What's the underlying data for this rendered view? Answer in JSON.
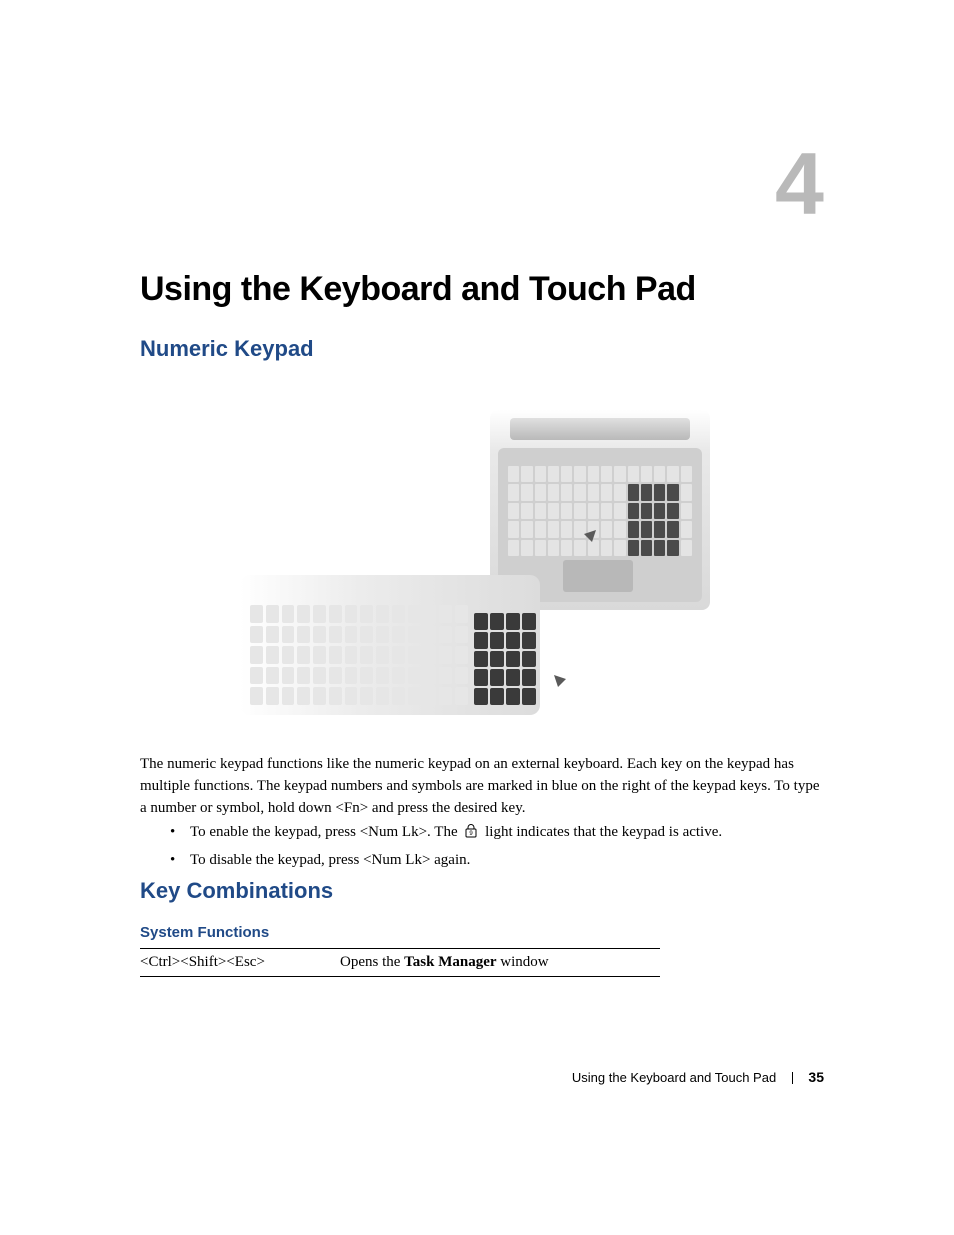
{
  "chapter": {
    "number": "4",
    "title": "Using the Keyboard and Touch Pad"
  },
  "sections": {
    "numeric_keypad": {
      "title": "Numeric Keypad",
      "paragraph": "The numeric keypad functions like the numeric keypad on an external keyboard. Each key on the keypad has multiple functions. The keypad numbers and symbols are marked in blue on the right of the keypad keys. To type a number or symbol, hold down <Fn> and press the desired key.",
      "bullets": [
        {
          "pre": "To enable the keypad, press <Num Lk>. The ",
          "post": " light indicates that the keypad is active.",
          "icon": "numlock-icon"
        },
        {
          "pre": "To disable the keypad, press <Num Lk> again.",
          "post": "",
          "icon": null
        }
      ]
    },
    "key_combinations": {
      "title": "Key Combinations",
      "system_functions": {
        "title": "System Functions",
        "rows": [
          {
            "keys": "<Ctrl><Shift><Esc>",
            "desc_pre": "Opens the ",
            "desc_bold": "Task Manager",
            "desc_post": " window"
          }
        ]
      }
    }
  },
  "footer": {
    "title": "Using the Keyboard and Touch Pad",
    "page": "35"
  },
  "colors": {
    "heading_blue": "#204a87",
    "chapter_gray": "#b9b9b9",
    "text": "#000000",
    "background": "#ffffff"
  }
}
